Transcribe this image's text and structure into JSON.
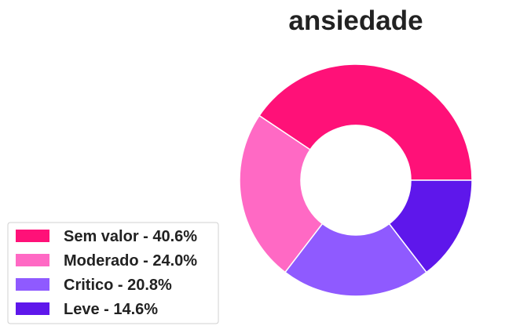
{
  "chart_data": {
    "type": "pie",
    "variant": "donut",
    "title": "ansiedade",
    "legend_position": "bottom-left",
    "start": "right, counterclockwise",
    "categories": [
      "Sem valor",
      "Moderado",
      "Critico",
      "Leve"
    ],
    "values": [
      40.6,
      24.0,
      20.8,
      14.6
    ],
    "legend_labels": [
      "Sem valor - 40.6%",
      "Moderado - 24.0%",
      "Critico - 20.8%",
      "Leve - 14.6%"
    ],
    "colors": [
      "#ff1178",
      "#ff69c4",
      "#8f5aff",
      "#5e17eb"
    ]
  }
}
